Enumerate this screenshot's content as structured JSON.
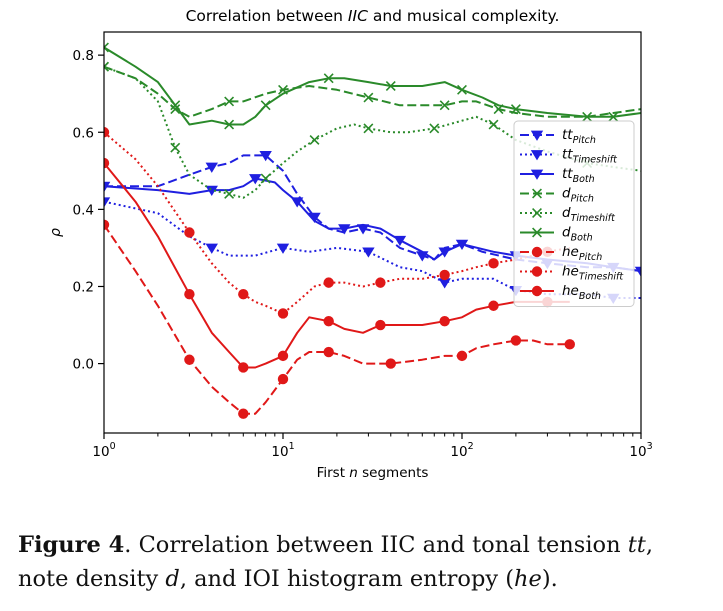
{
  "chart_data": {
    "type": "line",
    "title": "Correlation between IIC and musical complexity.",
    "title_parts": [
      "Correlation between ",
      "IIC",
      " and musical complexity."
    ],
    "xlabel_parts": [
      "First ",
      "n",
      " segments"
    ],
    "ylabel": "ρ",
    "xscale": "log",
    "xlim": [
      1,
      1000
    ],
    "ylim": [
      -0.18,
      0.86
    ],
    "xticks": [
      {
        "v": 1,
        "e": "0"
      },
      {
        "v": 10,
        "e": "1"
      },
      {
        "v": 100,
        "e": "2"
      },
      {
        "v": 1000,
        "e": "3"
      }
    ],
    "yticks": [
      0.0,
      0.2,
      0.4,
      0.6,
      0.8
    ],
    "legend_position": "right",
    "series": [
      {
        "name": "tt_Pitch",
        "base": "tt",
        "sub": "Pitch",
        "color": "#1f1fe0",
        "style": "dashed",
        "marker": "triangle",
        "x": [
          1,
          2,
          3,
          4,
          5,
          6,
          8,
          10,
          12,
          15,
          18,
          22,
          28,
          35,
          45,
          60,
          70,
          80,
          100,
          130,
          200,
          300,
          500,
          700,
          1000
        ],
        "y": [
          0.46,
          0.46,
          0.49,
          0.51,
          0.52,
          0.54,
          0.54,
          0.5,
          0.44,
          0.38,
          0.35,
          0.34,
          0.35,
          0.34,
          0.3,
          0.28,
          0.27,
          0.3,
          0.31,
          0.29,
          0.27,
          0.26,
          0.25,
          0.25,
          0.24
        ]
      },
      {
        "name": "tt_Timeshift",
        "base": "tt",
        "sub": "Timeshift",
        "color": "#1f1fe0",
        "style": "dotted",
        "marker": "triangle",
        "x": [
          1,
          2,
          3,
          4,
          5,
          7,
          10,
          14,
          20,
          30,
          45,
          60,
          80,
          100,
          150,
          200,
          300,
          500,
          700,
          1000
        ],
        "y": [
          0.42,
          0.39,
          0.33,
          0.3,
          0.28,
          0.28,
          0.3,
          0.29,
          0.3,
          0.29,
          0.25,
          0.24,
          0.21,
          0.22,
          0.22,
          0.19,
          0.18,
          0.18,
          0.17,
          0.17
        ]
      },
      {
        "name": "tt_Both",
        "base": "tt",
        "sub": "Both",
        "color": "#1f1fe0",
        "style": "solid",
        "marker": "triangle",
        "x": [
          1,
          2,
          3,
          4,
          5,
          6,
          7,
          9,
          10,
          12,
          15,
          18,
          22,
          28,
          35,
          45,
          60,
          70,
          80,
          100,
          150,
          200,
          300,
          500,
          700,
          1000
        ],
        "y": [
          0.46,
          0.45,
          0.44,
          0.45,
          0.45,
          0.46,
          0.48,
          0.47,
          0.45,
          0.42,
          0.37,
          0.35,
          0.35,
          0.36,
          0.35,
          0.32,
          0.29,
          0.27,
          0.29,
          0.31,
          0.29,
          0.28,
          0.27,
          0.26,
          0.25,
          0.24
        ]
      },
      {
        "name": "d_Pitch",
        "base": "d",
        "sub": "Pitch",
        "color": "#2a8a2a",
        "style": "dashed",
        "marker": "x",
        "x": [
          1,
          1.5,
          2,
          2.5,
          3,
          4,
          5,
          6,
          8,
          10,
          14,
          20,
          30,
          45,
          60,
          80,
          100,
          120,
          160,
          200,
          300,
          500,
          700,
          1000
        ],
        "y": [
          0.77,
          0.74,
          0.7,
          0.66,
          0.64,
          0.66,
          0.68,
          0.68,
          0.7,
          0.71,
          0.72,
          0.71,
          0.69,
          0.67,
          0.67,
          0.67,
          0.68,
          0.68,
          0.66,
          0.65,
          0.64,
          0.64,
          0.65,
          0.66
        ]
      },
      {
        "name": "d_Timeshift",
        "base": "d",
        "sub": "Timeshift",
        "color": "#2a8a2a",
        "style": "dotted",
        "marker": "x",
        "x": [
          1,
          1.5,
          2,
          2.5,
          3,
          4,
          5,
          6,
          7,
          8,
          10,
          12,
          15,
          20,
          25,
          30,
          40,
          50,
          70,
          100,
          120,
          150,
          200,
          300,
          500,
          700,
          1000
        ],
        "y": [
          0.77,
          0.74,
          0.68,
          0.56,
          0.49,
          0.45,
          0.44,
          0.43,
          0.45,
          0.48,
          0.52,
          0.55,
          0.58,
          0.61,
          0.62,
          0.61,
          0.6,
          0.6,
          0.61,
          0.63,
          0.64,
          0.62,
          0.58,
          0.55,
          0.52,
          0.51,
          0.5
        ]
      },
      {
        "name": "d_Both",
        "base": "d",
        "sub": "Both",
        "color": "#2a8a2a",
        "style": "solid",
        "marker": "x",
        "x": [
          1,
          1.5,
          2,
          2.5,
          3,
          4,
          5,
          6,
          7,
          8,
          10,
          14,
          18,
          22,
          30,
          40,
          60,
          80,
          100,
          130,
          160,
          200,
          300,
          500,
          700,
          1000
        ],
        "y": [
          0.82,
          0.77,
          0.73,
          0.67,
          0.62,
          0.63,
          0.62,
          0.62,
          0.64,
          0.67,
          0.7,
          0.73,
          0.74,
          0.74,
          0.73,
          0.72,
          0.72,
          0.73,
          0.71,
          0.69,
          0.67,
          0.66,
          0.65,
          0.64,
          0.64,
          0.65
        ]
      },
      {
        "name": "he_Pitch",
        "base": "he",
        "sub": "Pitch",
        "color": "#e01818",
        "style": "dashed",
        "marker": "circle",
        "x": [
          1,
          1.5,
          2,
          3,
          4,
          5,
          6,
          7,
          8,
          10,
          12,
          14,
          18,
          22,
          28,
          40,
          60,
          80,
          100,
          120,
          150,
          200,
          250,
          300,
          400
        ],
        "y": [
          0.36,
          0.24,
          0.15,
          0.01,
          -0.06,
          -0.1,
          -0.13,
          -0.13,
          -0.1,
          -0.04,
          0.01,
          0.03,
          0.03,
          0.02,
          0.0,
          0.0,
          0.01,
          0.02,
          0.02,
          0.04,
          0.05,
          0.06,
          0.06,
          0.05,
          0.05
        ]
      },
      {
        "name": "he_Timeshift",
        "base": "he",
        "sub": "Timeshift",
        "color": "#e01818",
        "style": "dotted",
        "marker": "circle",
        "x": [
          1,
          1.5,
          2,
          3,
          4,
          5,
          6,
          7,
          8,
          10,
          12,
          15,
          18,
          22,
          28,
          35,
          45,
          60,
          80,
          100,
          120,
          150,
          200,
          250,
          300,
          400
        ],
        "y": [
          0.6,
          0.53,
          0.46,
          0.34,
          0.26,
          0.21,
          0.18,
          0.16,
          0.15,
          0.13,
          0.16,
          0.2,
          0.21,
          0.21,
          0.2,
          0.21,
          0.22,
          0.22,
          0.23,
          0.24,
          0.25,
          0.26,
          0.27,
          0.28,
          0.29,
          0.3
        ]
      },
      {
        "name": "he_Both",
        "base": "he",
        "sub": "Both",
        "color": "#e01818",
        "style": "solid",
        "marker": "circle",
        "x": [
          1,
          1.5,
          2,
          3,
          4,
          5,
          6,
          7,
          8,
          10,
          12,
          14,
          18,
          22,
          28,
          35,
          45,
          60,
          80,
          100,
          120,
          150,
          200,
          250,
          300,
          400
        ],
        "y": [
          0.52,
          0.42,
          0.33,
          0.18,
          0.08,
          0.03,
          -0.01,
          -0.01,
          0.0,
          0.02,
          0.08,
          0.12,
          0.11,
          0.09,
          0.08,
          0.1,
          0.1,
          0.1,
          0.11,
          0.12,
          0.14,
          0.15,
          0.16,
          0.16,
          0.16,
          0.16
        ]
      }
    ]
  },
  "caption": {
    "label": "Figure 4",
    "parts": [
      {
        "t": ".  Correlation between IIC and tonal tension ",
        "i": false
      },
      {
        "t": "tt",
        "i": true
      },
      {
        "t": ",",
        "i": false
      },
      {
        "t": "BR",
        "i": false
      },
      {
        "t": "note density ",
        "i": false
      },
      {
        "t": "d",
        "i": true
      },
      {
        "t": ", and IOI histogram entropy (",
        "i": false
      },
      {
        "t": "he",
        "i": true
      },
      {
        "t": ").",
        "i": false
      }
    ]
  }
}
